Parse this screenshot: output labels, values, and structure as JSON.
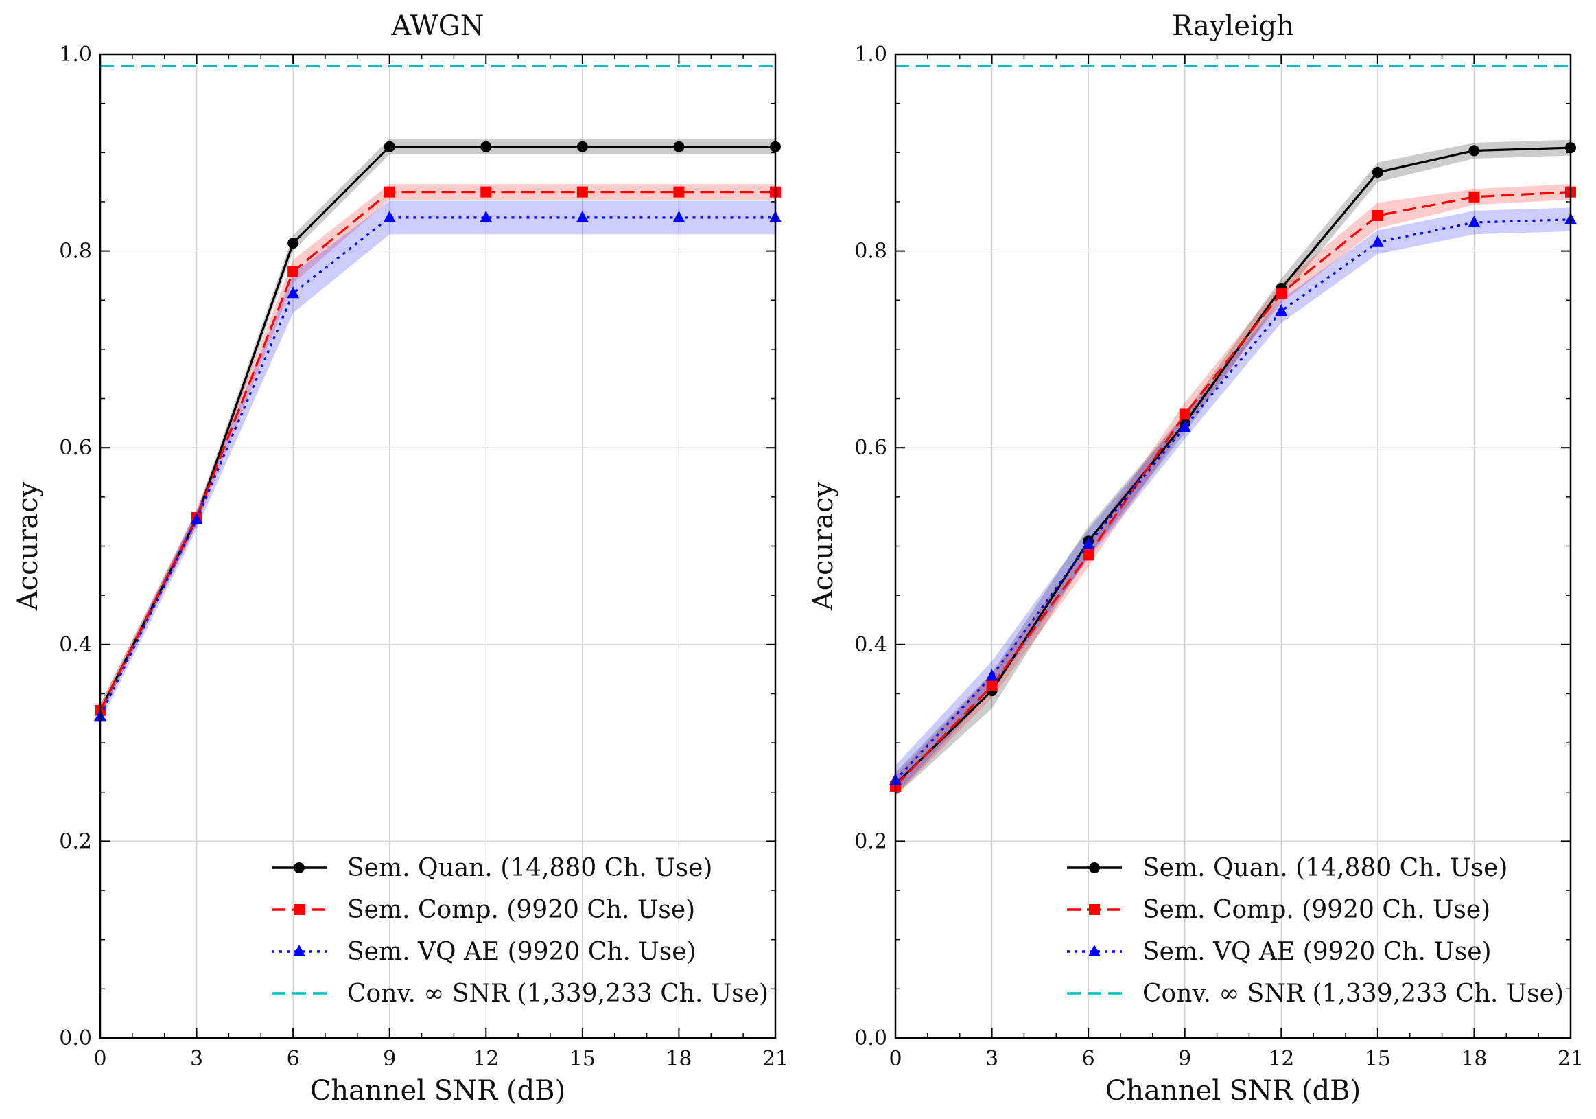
{
  "chart_data": [
    {
      "type": "line",
      "title": "AWGN",
      "xlabel": "Channel SNR (dB)",
      "ylabel": "Accuracy",
      "xlim": [
        0,
        21
      ],
      "ylim": [
        0.0,
        1.0
      ],
      "x": [
        0,
        3,
        6,
        9,
        12,
        15,
        18,
        21
      ],
      "xticks": [
        "0",
        "3",
        "6",
        "9",
        "12",
        "15",
        "18",
        "21"
      ],
      "yticks": [
        "0.0",
        "0.2",
        "0.4",
        "0.6",
        "0.8",
        "1.0"
      ],
      "grid": true,
      "legend_position": "lower-right",
      "series": [
        {
          "name": "Sem. Quan. (14,880 Ch. Use)",
          "color": "#000000",
          "style": "solid",
          "marker": "circle",
          "values": [
            0.333,
            0.528,
            0.808,
            0.906,
            0.906,
            0.906,
            0.906,
            0.906
          ],
          "band": [
            0.006,
            0.006,
            0.008,
            0.008,
            0.008,
            0.008,
            0.008,
            0.008
          ]
        },
        {
          "name": "Sem. Comp. (9920 Ch. Use)",
          "color": "#ff0000",
          "style": "dashed",
          "marker": "square",
          "values": [
            0.333,
            0.529,
            0.779,
            0.86,
            0.86,
            0.86,
            0.86,
            0.86
          ],
          "band": [
            0.006,
            0.008,
            0.012,
            0.008,
            0.008,
            0.008,
            0.008,
            0.008
          ]
        },
        {
          "name": "Sem. VQ AE (9920 Ch. Use)",
          "color": "#0000ff",
          "style": "dotted",
          "marker": "triangle",
          "values": [
            0.327,
            0.527,
            0.757,
            0.834,
            0.834,
            0.834,
            0.834,
            0.834
          ],
          "band": [
            0.006,
            0.01,
            0.02,
            0.017,
            0.017,
            0.017,
            0.017,
            0.017
          ]
        },
        {
          "name": "Conv. ∞ SNR (1,339,233 Ch. Use)",
          "color": "#00bfbf",
          "style": "hline",
          "value": 0.988
        }
      ]
    },
    {
      "type": "line",
      "title": "Rayleigh",
      "xlabel": "Channel SNR (dB)",
      "ylabel": "Accuracy",
      "xlim": [
        0,
        21
      ],
      "ylim": [
        0.0,
        1.0
      ],
      "x": [
        0,
        3,
        6,
        9,
        12,
        15,
        18,
        21
      ],
      "xticks": [
        "0",
        "3",
        "6",
        "9",
        "12",
        "15",
        "18",
        "21"
      ],
      "yticks": [
        "0.0",
        "0.2",
        "0.4",
        "0.6",
        "0.8",
        "1.0"
      ],
      "grid": true,
      "legend_position": "lower-right",
      "series": [
        {
          "name": "Sem. Quan. (14,880 Ch. Use)",
          "color": "#000000",
          "style": "solid",
          "marker": "circle",
          "values": [
            0.258,
            0.353,
            0.505,
            0.625,
            0.762,
            0.88,
            0.902,
            0.905
          ],
          "band": [
            0.012,
            0.018,
            0.015,
            0.01,
            0.01,
            0.01,
            0.008,
            0.008
          ]
        },
        {
          "name": "Sem. Comp. (9920 Ch. Use)",
          "color": "#ff0000",
          "style": "dashed",
          "marker": "square",
          "values": [
            0.256,
            0.358,
            0.491,
            0.634,
            0.757,
            0.836,
            0.855,
            0.86
          ],
          "band": [
            0.01,
            0.012,
            0.012,
            0.012,
            0.01,
            0.013,
            0.008,
            0.008
          ]
        },
        {
          "name": "Sem. VQ AE (9920 Ch. Use)",
          "color": "#0000ff",
          "style": "dotted",
          "marker": "triangle",
          "values": [
            0.262,
            0.368,
            0.502,
            0.621,
            0.739,
            0.809,
            0.829,
            0.832
          ],
          "band": [
            0.015,
            0.015,
            0.015,
            0.012,
            0.012,
            0.012,
            0.012,
            0.012
          ]
        },
        {
          "name": "Conv. ∞ SNR (1,339,233 Ch. Use)",
          "color": "#00bfbf",
          "style": "hline",
          "value": 0.988
        }
      ]
    }
  ]
}
